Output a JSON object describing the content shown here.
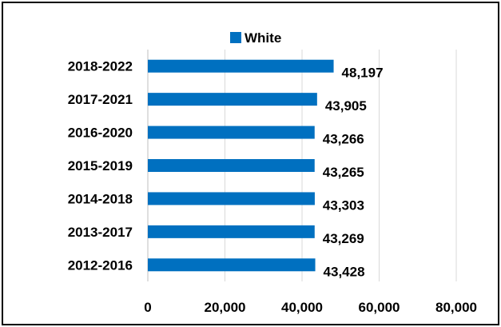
{
  "chart_data": {
    "type": "bar",
    "orientation": "horizontal",
    "categories": [
      "2018-2022",
      "2017-2021",
      "2016-2020",
      "2015-2019",
      "2014-2018",
      "2013-2017",
      "2012-2016"
    ],
    "series": [
      {
        "name": "White",
        "color": "#0070C0",
        "values": [
          48197,
          43905,
          43266,
          43265,
          43303,
          43269,
          43428
        ],
        "labels": [
          "48,197",
          "43,905",
          "43,266",
          "43,265",
          "43,303",
          "43,269",
          "43,428"
        ]
      }
    ],
    "xlim": [
      0,
      80000
    ],
    "xticks": [
      0,
      20000,
      40000,
      60000,
      80000
    ],
    "xtick_labels": [
      "0",
      "20,000",
      "40,000",
      "60,000",
      "80,000"
    ],
    "title": "",
    "xlabel": "",
    "ylabel": "",
    "grid": "vertical",
    "legend_position": "top"
  }
}
